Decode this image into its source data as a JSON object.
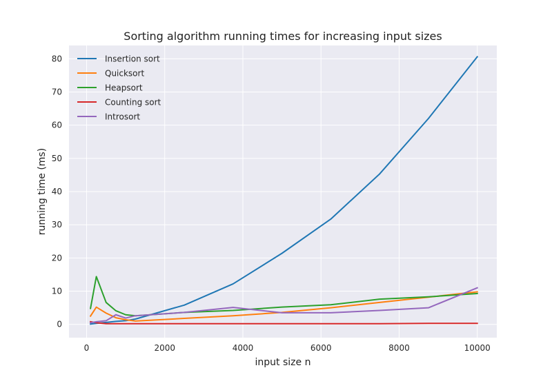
{
  "chart_data": {
    "type": "line",
    "title": "Sorting algorithm running times for increasing input sizes",
    "xlabel": "input size n",
    "ylabel": "running time (ms)",
    "xlim": [
      -450,
      10500
    ],
    "ylim": [
      -4,
      84
    ],
    "xticks": [
      0,
      2000,
      4000,
      6000,
      8000,
      10000
    ],
    "yticks": [
      0,
      10,
      20,
      30,
      40,
      50,
      60,
      70,
      80
    ],
    "grid": true,
    "legend_position": "top-left",
    "series": [
      {
        "name": "Insertion sort",
        "color": "#1f77b4",
        "x": [
          100,
          250,
          500,
          750,
          1000,
          1250,
          2500,
          3750,
          5000,
          6250,
          7500,
          8750,
          10000
        ],
        "y": [
          0.1,
          0.3,
          0.6,
          0.9,
          1.1,
          1.6,
          5.8,
          12.2,
          21.4,
          31.7,
          45.3,
          62.0,
          80.6
        ]
      },
      {
        "name": "Quicksort",
        "color": "#ff7f0e",
        "x": [
          100,
          250,
          500,
          750,
          1000,
          1250,
          2500,
          3750,
          5000,
          6250,
          7500,
          8750,
          10000
        ],
        "y": [
          2.5,
          5.2,
          3.4,
          2.0,
          1.4,
          1.0,
          1.8,
          2.6,
          3.6,
          5.0,
          6.6,
          8.2,
          9.8
        ]
      },
      {
        "name": "Heapsort",
        "color": "#2ca02c",
        "x": [
          100,
          250,
          500,
          750,
          1000,
          1250,
          2500,
          3750,
          5000,
          6250,
          7500,
          8750,
          10000
        ],
        "y": [
          4.8,
          14.4,
          6.6,
          4.1,
          2.9,
          2.6,
          3.6,
          4.2,
          5.2,
          5.9,
          7.6,
          8.3,
          9.3
        ]
      },
      {
        "name": "Counting sort",
        "color": "#d62728",
        "x": [
          100,
          250,
          500,
          750,
          1000,
          1250,
          2500,
          3750,
          5000,
          6250,
          7500,
          8750,
          10000
        ],
        "y": [
          0.8,
          0.5,
          0.2,
          0.2,
          0.2,
          0.2,
          0.2,
          0.2,
          0.2,
          0.2,
          0.2,
          0.3,
          0.3
        ]
      },
      {
        "name": "Introsort",
        "color": "#9467bd",
        "x": [
          100,
          250,
          500,
          750,
          1000,
          1250,
          2500,
          3750,
          5000,
          6250,
          7500,
          8750,
          10000
        ],
        "y": [
          0.5,
          0.8,
          1.1,
          2.9,
          1.9,
          2.6,
          3.6,
          5.1,
          3.5,
          3.5,
          4.2,
          5.0,
          11.0
        ]
      }
    ]
  }
}
